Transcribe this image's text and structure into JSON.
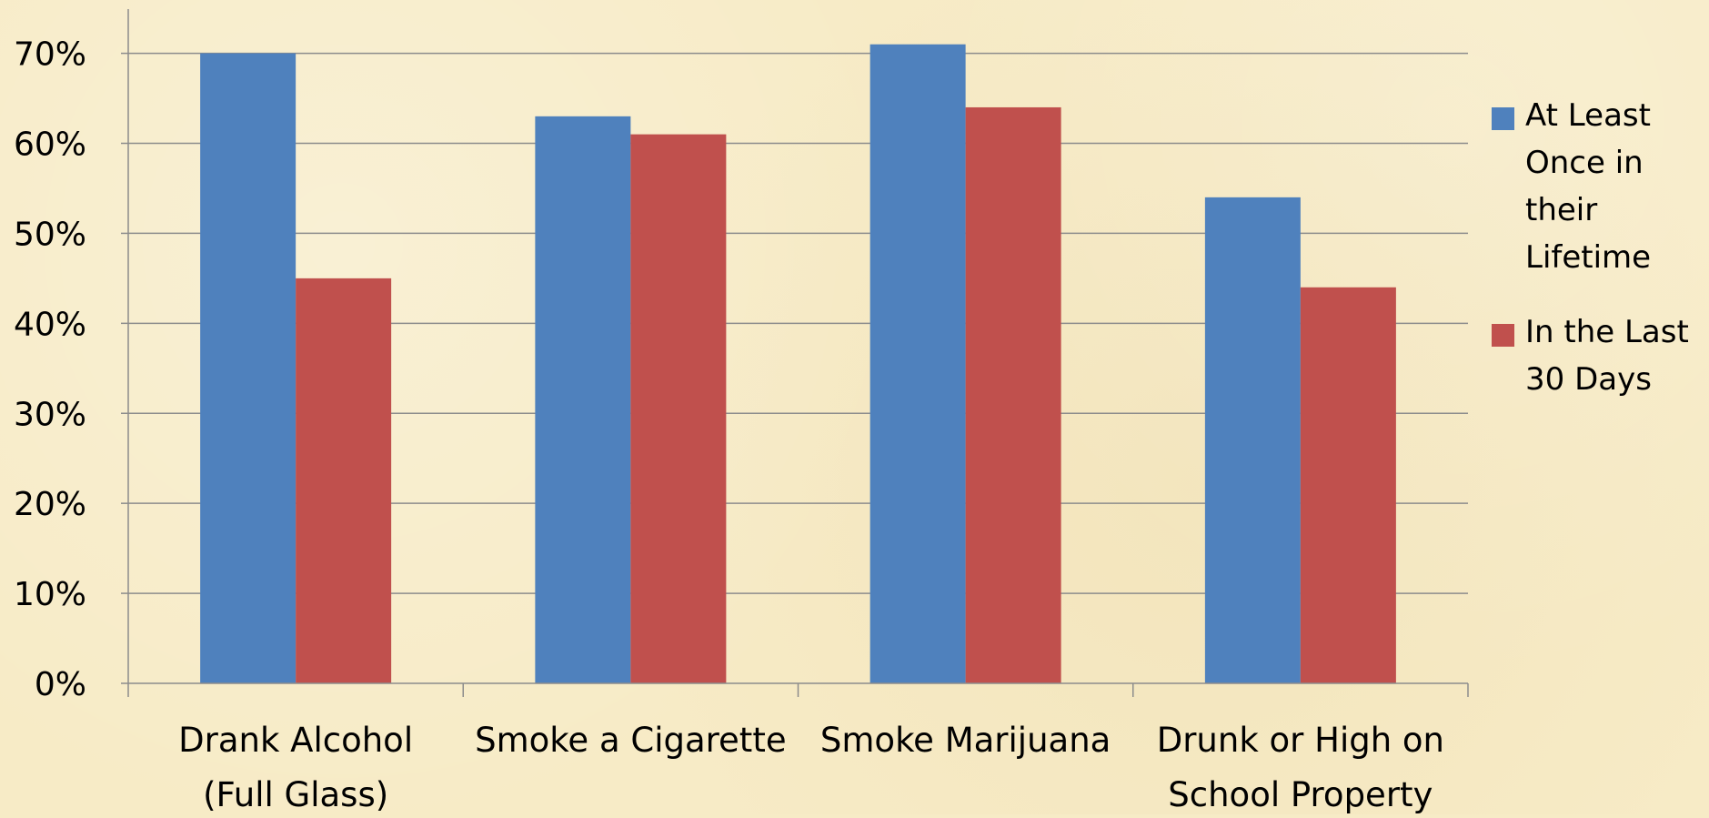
{
  "chart_data": {
    "type": "bar",
    "title": "",
    "xlabel": "",
    "ylabel": "",
    "ylim": [
      0,
      0.7
    ],
    "grid": true,
    "legend_position": "right",
    "y_ticks": [
      "0%",
      "10%",
      "20%",
      "30%",
      "40%",
      "50%",
      "60%",
      "70%"
    ],
    "categories": [
      [
        "Drank Alcohol",
        "(Full Glass)"
      ],
      [
        "Smoke a Cigarette"
      ],
      [
        "Smoke Marijuana"
      ],
      [
        "Drunk or High on",
        "School Property"
      ]
    ],
    "series": [
      {
        "name": [
          "At Least",
          "Once in",
          "their",
          "Lifetime"
        ],
        "color": "#4f81bd",
        "values": [
          0.7,
          0.63,
          0.71,
          0.54
        ]
      },
      {
        "name": [
          "In the Last",
          "30 Days"
        ],
        "color": "#c0504d",
        "values": [
          0.45,
          0.61,
          0.64,
          0.44
        ]
      }
    ]
  }
}
